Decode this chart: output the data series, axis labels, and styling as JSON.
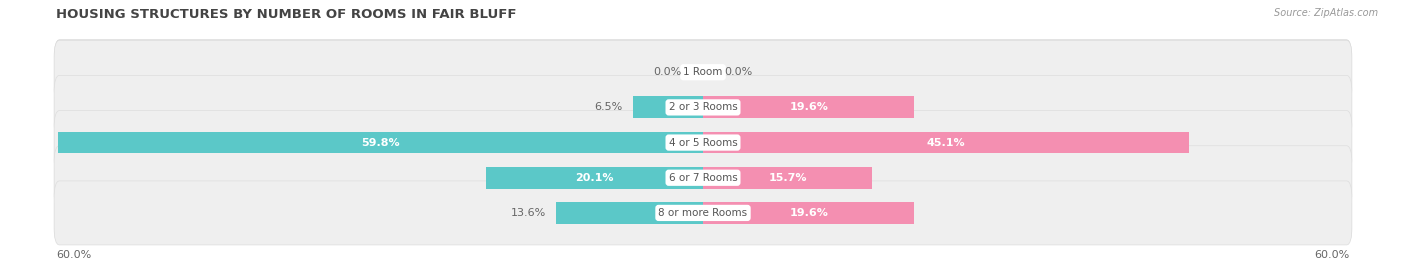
{
  "title": "HOUSING STRUCTURES BY NUMBER OF ROOMS IN FAIR BLUFF",
  "source": "Source: ZipAtlas.com",
  "categories": [
    "1 Room",
    "2 or 3 Rooms",
    "4 or 5 Rooms",
    "6 or 7 Rooms",
    "8 or more Rooms"
  ],
  "owner_values": [
    0.0,
    6.5,
    59.8,
    20.1,
    13.6
  ],
  "renter_values": [
    0.0,
    19.6,
    45.1,
    15.7,
    19.6
  ],
  "owner_color": "#5bc8c8",
  "renter_color": "#f48fb1",
  "row_bg_color": "#efefef",
  "row_border_color": "#dddddd",
  "bar_height": 0.62,
  "x_max": 60.0,
  "axis_label_left": "60.0%",
  "axis_label_right": "60.0%",
  "title_fontsize": 9.5,
  "label_fontsize": 8,
  "category_fontsize": 7.5,
  "source_fontsize": 7,
  "value_inside_fontsize": 8,
  "background_color": "#ffffff",
  "text_color": "#555555",
  "label_color": "#666666"
}
